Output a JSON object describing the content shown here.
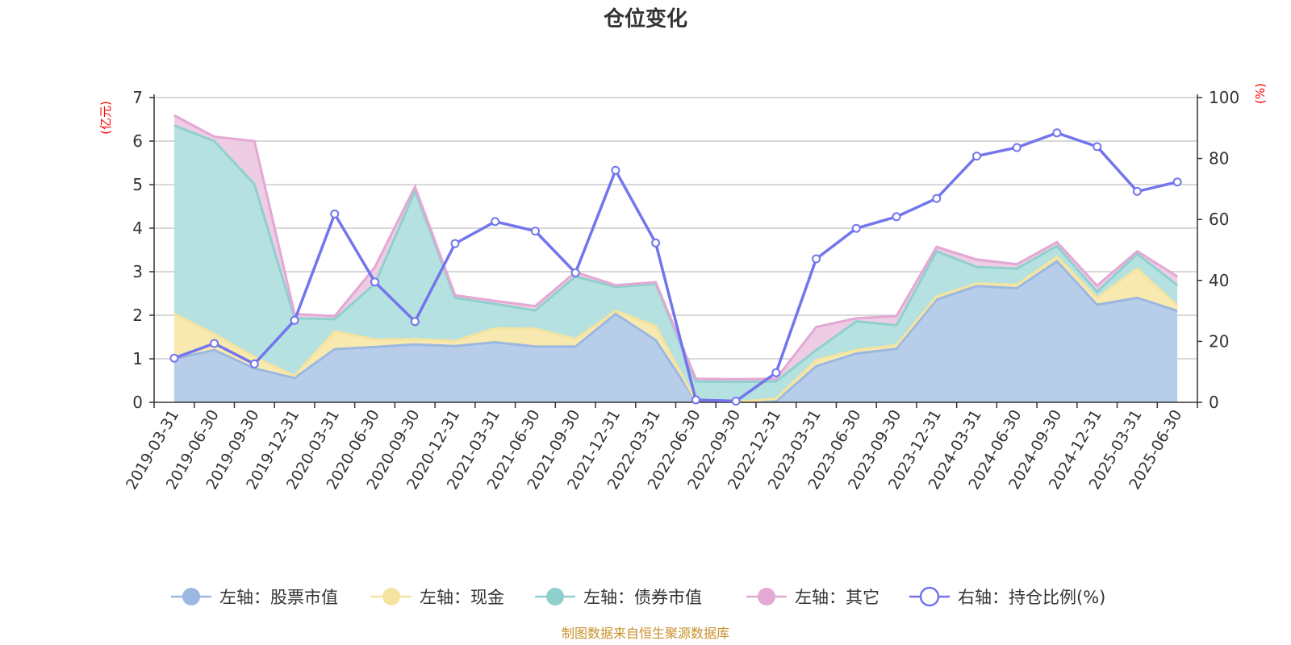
{
  "chart_data": {
    "type": "area",
    "title": "仓位变化",
    "source": "制图数据来自恒生聚源数据库",
    "left_unit": "(亿元)",
    "right_unit": "(%)",
    "ylim_left": [
      0,
      7
    ],
    "ylim_right": [
      0,
      100
    ],
    "left_ticks": [
      "0",
      "1",
      "2",
      "3",
      "4",
      "5",
      "6",
      "7"
    ],
    "right_ticks": [
      "0",
      "20",
      "40",
      "60",
      "80",
      "100"
    ],
    "grid": true,
    "legend_position": "bottom",
    "categories": [
      "2019-03-31",
      "2019-06-30",
      "2019-09-30",
      "2019-12-31",
      "2020-03-31",
      "2020-06-30",
      "2020-09-30",
      "2020-12-31",
      "2021-03-31",
      "2021-06-30",
      "2021-09-30",
      "2021-12-31",
      "2022-03-31",
      "2022-06-30",
      "2022-09-30",
      "2022-12-31",
      "2023-03-31",
      "2023-06-30",
      "2023-09-30",
      "2023-12-31",
      "2024-03-31",
      "2024-06-30",
      "2024-09-30",
      "2024-12-31",
      "2025-03-31",
      "2025-06-30"
    ],
    "series": [
      {
        "name": "左轴：股票市值",
        "axis": "left",
        "type": "stacked-area",
        "color": "#9bb8e0",
        "fill": "#b8cde9",
        "values": [
          1.0,
          1.2,
          0.78,
          0.56,
          1.22,
          1.27,
          1.33,
          1.29,
          1.38,
          1.28,
          1.28,
          2.03,
          1.43,
          0.03,
          0.01,
          0.02,
          0.83,
          1.12,
          1.23,
          2.36,
          2.67,
          2.62,
          3.24,
          2.24,
          2.4,
          2.1
        ]
      },
      {
        "name": "左轴：现金",
        "axis": "left",
        "type": "stacked-area",
        "color": "#f5e3a0",
        "fill": "#f8e9b0",
        "values": [
          1.03,
          0.37,
          0.26,
          0.05,
          0.41,
          0.17,
          0.12,
          0.12,
          0.32,
          0.41,
          0.17,
          0.07,
          0.32,
          0.0,
          0.0,
          0.06,
          0.14,
          0.08,
          0.08,
          0.07,
          0.06,
          0.08,
          0.1,
          0.16,
          0.67,
          0.12
        ]
      },
      {
        "name": "左轴：债券市值",
        "axis": "left",
        "type": "stacked-area",
        "color": "#8fd0cf",
        "fill": "#b5e1e0",
        "values": [
          4.33,
          4.43,
          3.97,
          1.32,
          0.28,
          1.28,
          3.4,
          0.99,
          0.56,
          0.42,
          1.44,
          0.55,
          0.97,
          0.45,
          0.46,
          0.4,
          0.23,
          0.66,
          0.46,
          1.04,
          0.38,
          0.37,
          0.25,
          0.14,
          0.34,
          0.47
        ]
      },
      {
        "name": "左轴：其它",
        "axis": "left",
        "type": "stacked-area",
        "color": "#e3a8d4",
        "fill": "#eecde4",
        "values": [
          0.23,
          0.1,
          0.99,
          0.1,
          0.07,
          0.38,
          0.1,
          0.06,
          0.07,
          0.1,
          0.1,
          0.04,
          0.04,
          0.06,
          0.06,
          0.06,
          0.53,
          0.07,
          0.21,
          0.1,
          0.17,
          0.1,
          0.09,
          0.14,
          0.06,
          0.2
        ]
      },
      {
        "name": "右轴：持仓比例(%)",
        "axis": "right",
        "type": "line",
        "color": "#7375ec",
        "values": [
          14.5,
          19.3,
          12.6,
          26.9,
          61.8,
          39.5,
          26.5,
          52.1,
          59.3,
          56.2,
          42.5,
          76.1,
          52.3,
          0.8,
          0.4,
          9.7,
          47.1,
          57.1,
          60.9,
          66.9,
          80.8,
          83.6,
          88.4,
          83.9,
          69.2,
          72.3
        ]
      }
    ]
  }
}
